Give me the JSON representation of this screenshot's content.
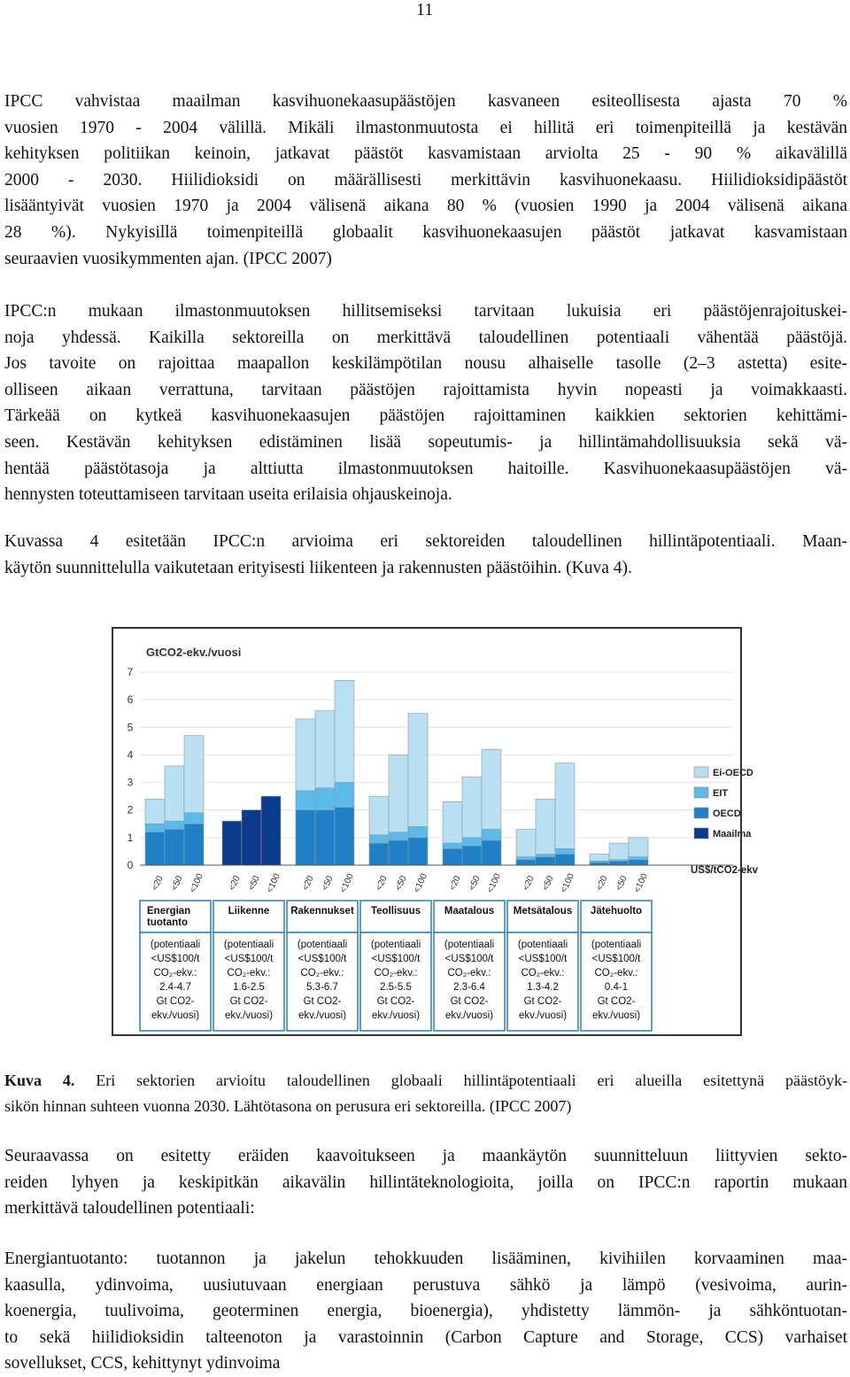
{
  "page_number": "11",
  "body_before": [
    [
      "IPCC vahvistaa maailman kasvihuonekaasupäästöjen kasvaneen esiteollisesta ajasta 70 %",
      "vuosien 1970 - 2004 välillä. Mikäli ilmastonmuutosta ei hillitä eri toimenpiteillä ja kestävän",
      "kehityksen politiikan keinoin, jatkavat päästöt kasvamistaan arviolta 25 - 90 % aikavälillä",
      "2000 - 2030. Hiilidioksidi on määrällisesti merkittävin kasvihuonekaasu. Hiilidioksidipäästöt",
      "lisääntyivät vuosien 1970 ja 2004 välisenä aikana 80 % (vuosien 1990 ja 2004 välisenä aikana",
      "28 %). Nykyisillä toimenpiteillä globaalit kasvihuonekaasujen päästöt jatkavat kasvamistaan",
      "seuraavien vuosikymmenten ajan. (IPCC 2007)"
    ],
    [
      "IPCC:n mukaan ilmastonmuutoksen hillitsemiseksi tarvitaan lukuisia eri päästöjenrajoituskei-",
      "noja yhdessä. Kaikilla sektoreilla on merkittävä taloudellinen potentiaali vähentää päästöjä.",
      "Jos tavoite on rajoittaa maapallon keskilämpötilan nousu alhaiselle tasolle (2–3 astetta) esite-",
      "olliseen aikaan verrattuna, tarvitaan päästöjen rajoittamista hyvin nopeasti ja voimakkaasti.",
      "Tärkeää on kytkeä kasvihuonekaasujen päästöjen rajoittaminen kaikkien sektorien kehittämi-",
      "seen. Kestävän kehityksen edistäminen lisää sopeutumis- ja hillintämahdollisuuksia sekä vä-",
      "hentää päästötasoja ja alttiutta ilmastonmuutoksen haitoille. Kasvihuonekaasupäästöjen vä-",
      "hennysten toteuttamiseen tarvitaan useita erilaisia ohjauskeinoja."
    ],
    [
      "Kuvassa 4 esitetään IPCC:n arvioima eri sektoreiden taloudellinen hillintäpotentiaali. Maan-",
      "käytön suunnittelulla vaikutetaan erityisesti liikenteen ja rakennusten päästöihin. (Kuva 4)."
    ]
  ],
  "chart_data": {
    "type": "bar",
    "stacked": true,
    "title": "GtCO2-ekv./vuosi",
    "x_label": "US$/tCO2-ekv",
    "categories": [
      "<20",
      "<50",
      "<100",
      "<20",
      "<50",
      "<100",
      "<20",
      "<50",
      "<100",
      "<20",
      "<50",
      "<100",
      "<20",
      "<50",
      "<100",
      "<20",
      "<50",
      "<100",
      "<20",
      "<50",
      "<100"
    ],
    "series": [
      {
        "name": "Maailma",
        "color": "#0d3b8c",
        "values": [
          0,
          0,
          0,
          1.6,
          2.0,
          2.5,
          0,
          0,
          0,
          0,
          0,
          0,
          0,
          0,
          0,
          0,
          0,
          0,
          0,
          0,
          0
        ]
      },
      {
        "name": "OECD",
        "color": "#1f80c6",
        "values": [
          1.2,
          1.3,
          1.5,
          0,
          0,
          0,
          2.0,
          2.0,
          2.1,
          0.8,
          0.9,
          1.0,
          0.6,
          0.7,
          0.9,
          0.2,
          0.3,
          0.4,
          0.1,
          0.15,
          0.2
        ]
      },
      {
        "name": "EIT",
        "color": "#5cbaea",
        "values": [
          0.3,
          0.3,
          0.4,
          0,
          0,
          0,
          0.7,
          0.8,
          0.9,
          0.3,
          0.3,
          0.4,
          0.2,
          0.3,
          0.4,
          0.1,
          0.1,
          0.2,
          0.05,
          0.05,
          0.1
        ]
      },
      {
        "name": "Ei-OECD",
        "color": "#b9dff3",
        "values": [
          0.9,
          2.0,
          2.8,
          0,
          0,
          0,
          2.6,
          2.8,
          3.7,
          1.4,
          2.8,
          4.1,
          1.5,
          2.2,
          2.9,
          1.0,
          2.0,
          3.1,
          0.25,
          0.6,
          0.7
        ]
      }
    ],
    "ylim": [
      0,
      7
    ],
    "yticks": [
      0,
      1,
      2,
      3,
      4,
      5,
      6,
      7
    ],
    "grid": true,
    "sectors": [
      {
        "name": [
          "Energian",
          "tuotanto"
        ],
        "note": [
          "(potentiaali",
          "<US$100/t",
          "CO₂-ekv.:",
          "2.4-4.7",
          "Gt CO2-",
          "ekv./vuosi)"
        ]
      },
      {
        "name": [
          "Liikenne"
        ],
        "note": [
          "(potentiaali",
          "<US$100/t",
          "CO₂-ekv.:",
          "1.6-2.5",
          "Gt CO2-",
          "ekv./vuosi)"
        ]
      },
      {
        "name": [
          "Rakennukset"
        ],
        "note": [
          "(potentiaali",
          "<US$100/t",
          "CO₂-ekv.:",
          "5.3-6.7",
          "Gt CO2-",
          "ekv./vuosi)"
        ]
      },
      {
        "name": [
          "Teollisuus"
        ],
        "note": [
          "(potentiaali",
          "<US$100/t",
          "CO₂-ekv.:",
          "2.5-5.5",
          "Gt CO2-",
          "ekv./vuosi)"
        ]
      },
      {
        "name": [
          "Maatalous"
        ],
        "note": [
          "(potentiaali",
          "<US$100/t",
          "CO₂-ekv.:",
          "2.3-6.4",
          "Gt CO2-",
          "ekv./vuosi)"
        ]
      },
      {
        "name": [
          "Metsätalous"
        ],
        "note": [
          "(potentiaali",
          "<US$100/t",
          "CO₂-ekv.:",
          "1.3-4.2",
          "Gt CO2-",
          "ekv./vuosi)"
        ]
      },
      {
        "name": [
          "Jätehuolto"
        ],
        "note": [
          "(potentiaali",
          "<US$100/t",
          "CO₂-ekv.:",
          "0.4-1",
          "Gt CO2-",
          "ekv./vuosi)"
        ]
      }
    ]
  },
  "caption": {
    "label": "Kuva 4.",
    "lines": [
      "Eri sektorien arvioitu taloudellinen globaali hillintäpotentiaali eri alueilla esitettynä päästöyk-",
      "sikön hinnan suhteen vuonna 2030. Lähtötasona on perusura eri sektoreilla. (IPCC 2007)"
    ]
  },
  "body_after": [
    [
      "Seuraavassa on esitetty eräiden kaavoitukseen ja maankäytön suunnitteluun liittyvien sekto-",
      "reiden lyhyen ja keskipitkän aikavälin hillintäteknologioita, joilla on IPCC:n raportin mukaan",
      "merkittävä taloudellinen potentiaali:"
    ],
    [
      "Energiantuotanto: tuotannon ja jakelun tehokkuuden lisääminen, kivihiilen korvaaminen maa-",
      "kaasulla, ydinvoima, uusiutuvaan energiaan perustuva sähkö ja lämpö (vesivoima, aurin-",
      "koenergia, tuulivoima, geoterminen energia, bioenergia), yhdistetty lämmön- ja sähköntuotan-",
      "to sekä hiilidioksidin talteenoton ja varastoinnin (Carbon Capture and Storage, CCS) varhaiset",
      "sovellukset, CCS, kehittynyt ydinvoima"
    ]
  ]
}
